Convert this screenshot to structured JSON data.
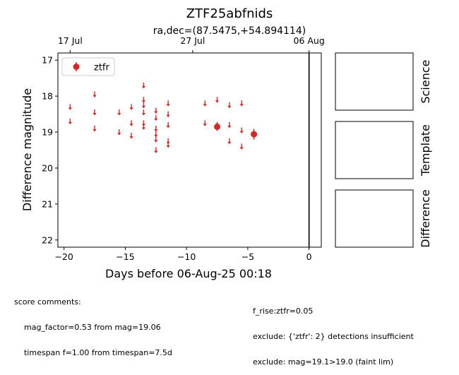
{
  "chart_data": {
    "type": "scatter",
    "title": "ZTF25abfnids",
    "subtitle": "ra,dec=(87.5475,+54.894114)",
    "xlabel": "Days before 06-Aug-25 00:18",
    "ylabel": "Difference magnitude",
    "xlim": [
      -20.5,
      1.0
    ],
    "ylim": [
      22.2,
      16.8
    ],
    "y_inverted": true,
    "x_ticks": [
      -20,
      -15,
      -10,
      -5,
      0
    ],
    "y_ticks": [
      17,
      18,
      19,
      20,
      21,
      22
    ],
    "top_axis_ticks": [
      {
        "x": -19.5,
        "label": "17 Jul"
      },
      {
        "x": -9.5,
        "label": "27 Jul"
      },
      {
        "x": 0,
        "label": "06 Aug"
      }
    ],
    "reference_line_x": 0,
    "legend": {
      "position": "top-left",
      "entries": [
        "ztfr"
      ]
    },
    "series_color": "#d62728",
    "upper_limits": [
      {
        "x": -19.5,
        "y": 18.3
      },
      {
        "x": -19.5,
        "y": 18.7
      },
      {
        "x": -17.5,
        "y": 17.95
      },
      {
        "x": -17.5,
        "y": 18.45
      },
      {
        "x": -17.5,
        "y": 18.9
      },
      {
        "x": -15.5,
        "y": 18.45
      },
      {
        "x": -15.5,
        "y": 19.0
      },
      {
        "x": -14.5,
        "y": 18.3
      },
      {
        "x": -14.5,
        "y": 18.75
      },
      {
        "x": -14.5,
        "y": 19.1
      },
      {
        "x": -13.5,
        "y": 17.7
      },
      {
        "x": -13.5,
        "y": 18.1
      },
      {
        "x": -13.5,
        "y": 18.25
      },
      {
        "x": -13.5,
        "y": 18.45
      },
      {
        "x": -13.5,
        "y": 18.75
      },
      {
        "x": -13.5,
        "y": 18.85
      },
      {
        "x": -12.5,
        "y": 18.4
      },
      {
        "x": -12.5,
        "y": 18.6
      },
      {
        "x": -12.5,
        "y": 18.9
      },
      {
        "x": -12.5,
        "y": 19.05
      },
      {
        "x": -12.5,
        "y": 19.2
      },
      {
        "x": -12.5,
        "y": 19.5
      },
      {
        "x": -11.5,
        "y": 18.2
      },
      {
        "x": -11.5,
        "y": 18.5
      },
      {
        "x": -11.5,
        "y": 18.8
      },
      {
        "x": -11.5,
        "y": 19.25
      },
      {
        "x": -11.5,
        "y": 19.35
      },
      {
        "x": -8.5,
        "y": 18.2
      },
      {
        "x": -8.5,
        "y": 18.75
      },
      {
        "x": -7.5,
        "y": 18.1
      },
      {
        "x": -7.5,
        "y": 18.8
      },
      {
        "x": -6.5,
        "y": 18.25
      },
      {
        "x": -6.5,
        "y": 18.8
      },
      {
        "x": -6.5,
        "y": 19.25
      },
      {
        "x": -5.5,
        "y": 18.2
      },
      {
        "x": -5.5,
        "y": 18.95
      },
      {
        "x": -5.5,
        "y": 19.4
      }
    ],
    "detections": [
      {
        "x": -7.5,
        "y": 18.85,
        "err": 0.12
      },
      {
        "x": -4.5,
        "y": 19.06,
        "err": 0.15
      }
    ],
    "side_panels": [
      "Science",
      "Template",
      "Difference"
    ]
  },
  "comments": {
    "left": [
      "score comments:",
      "    mag_factor=0.53 from mag=19.06",
      "    timespan f=1.00 from timespan=7.5d"
    ],
    "right": [
      "f_rise:ztfr=0.05",
      "exclude: {'ztfr': 2} detections insufficient",
      "exclude: mag=19.1>19.0 (faint lim)"
    ]
  }
}
